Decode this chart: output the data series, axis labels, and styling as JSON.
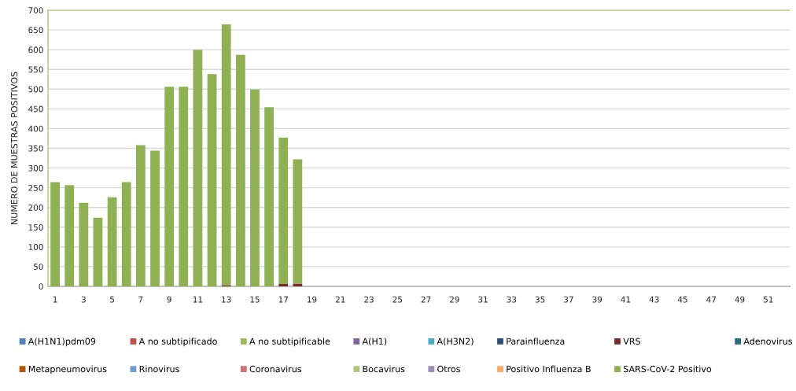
{
  "chart_data": {
    "type": "bar",
    "stacked": true,
    "ylabel": "NUMERO DE MUESTRAS POSITIVOS",
    "categories": [
      "1",
      null,
      "3",
      null,
      "5",
      null,
      "7",
      null,
      "9",
      null,
      "11",
      null,
      "13",
      null,
      "15",
      null,
      "17",
      null,
      "19",
      null,
      "21",
      null,
      "23",
      null,
      "25",
      null,
      "27",
      null,
      "29",
      null,
      "31",
      null,
      "33",
      null,
      "35",
      null,
      "37",
      null,
      "39",
      null,
      "41",
      null,
      "43",
      null,
      "45",
      null,
      "47",
      null,
      "49",
      null,
      "51",
      null
    ],
    "ylim": [
      0,
      700
    ],
    "yticks": [
      0,
      50,
      100,
      150,
      200,
      250,
      300,
      350,
      400,
      450,
      500,
      550,
      600,
      650,
      700
    ],
    "grid": "y",
    "legend": "bottom",
    "series": [
      {
        "name": "A(H1N1)pdm09",
        "color": "#4f81bd",
        "values": [
          0,
          0,
          0,
          0,
          0,
          0,
          0,
          0,
          0,
          0,
          0,
          0,
          0,
          0,
          0,
          0,
          0,
          0,
          null,
          null,
          null,
          null,
          null,
          null,
          null,
          null,
          null,
          null,
          null,
          null,
          null,
          null,
          null,
          null,
          null,
          null,
          null,
          null,
          null,
          null,
          null,
          null,
          null,
          null,
          null,
          null,
          null,
          null,
          null,
          null,
          null,
          null
        ]
      },
      {
        "name": "A no subtipificado",
        "color": "#c0504d",
        "values": [
          0,
          0,
          0,
          0,
          0,
          0,
          0,
          0,
          0,
          0,
          0,
          0,
          0,
          0,
          0,
          0,
          0,
          0,
          null,
          null,
          null,
          null,
          null,
          null,
          null,
          null,
          null,
          null,
          null,
          null,
          null,
          null,
          null,
          null,
          null,
          null,
          null,
          null,
          null,
          null,
          null,
          null,
          null,
          null,
          null,
          null,
          null,
          null,
          null,
          null,
          null,
          null
        ]
      },
      {
        "name": "A no subtipificable",
        "color": "#9bbb59",
        "values": [
          0,
          0,
          0,
          0,
          0,
          0,
          0,
          0,
          0,
          0,
          0,
          0,
          0,
          0,
          0,
          0,
          0,
          0,
          null,
          null,
          null,
          null,
          null,
          null,
          null,
          null,
          null,
          null,
          null,
          null,
          null,
          null,
          null,
          null,
          null,
          null,
          null,
          null,
          null,
          null,
          null,
          null,
          null,
          null,
          null,
          null,
          null,
          null,
          null,
          null,
          null,
          null
        ]
      },
      {
        "name": "A(H1)",
        "color": "#8064a2",
        "values": [
          0,
          0,
          0,
          0,
          0,
          0,
          0,
          0,
          0,
          0,
          0,
          0,
          0,
          0,
          0,
          0,
          0,
          0,
          null,
          null,
          null,
          null,
          null,
          null,
          null,
          null,
          null,
          null,
          null,
          null,
          null,
          null,
          null,
          null,
          null,
          null,
          null,
          null,
          null,
          null,
          null,
          null,
          null,
          null,
          null,
          null,
          null,
          null,
          null,
          null,
          null,
          null
        ]
      },
      {
        "name": "A(H3N2)",
        "color": "#4bacc6",
        "values": [
          0,
          0,
          0,
          0,
          0,
          0,
          0,
          0,
          0,
          0,
          0,
          0,
          0,
          0,
          0,
          0,
          0,
          0,
          null,
          null,
          null,
          null,
          null,
          null,
          null,
          null,
          null,
          null,
          null,
          null,
          null,
          null,
          null,
          null,
          null,
          null,
          null,
          null,
          null,
          null,
          null,
          null,
          null,
          null,
          null,
          null,
          null,
          null,
          null,
          null,
          null,
          null
        ]
      },
      {
        "name": "Parainfluenza",
        "color": "#2c4d75",
        "values": [
          0,
          0,
          0,
          0,
          0,
          0,
          0,
          0,
          0,
          0,
          0,
          0,
          0,
          0,
          0,
          0,
          0,
          0,
          null,
          null,
          null,
          null,
          null,
          null,
          null,
          null,
          null,
          null,
          null,
          null,
          null,
          null,
          null,
          null,
          null,
          null,
          null,
          null,
          null,
          null,
          null,
          null,
          null,
          null,
          null,
          null,
          null,
          null,
          null,
          null,
          null,
          null
        ]
      },
      {
        "name": "VRS",
        "color": "#772c2a",
        "values": [
          0,
          0,
          0,
          0,
          0,
          0,
          0,
          0,
          0,
          0,
          0,
          0,
          3,
          0,
          0,
          0,
          6,
          7,
          null,
          null,
          null,
          null,
          null,
          null,
          null,
          null,
          null,
          null,
          null,
          null,
          null,
          null,
          null,
          null,
          null,
          null,
          null,
          null,
          null,
          null,
          null,
          null,
          null,
          null,
          null,
          null,
          null,
          null,
          null,
          null,
          null,
          null
        ]
      },
      {
        "name": "Adenovirus",
        "color": "#276a7c",
        "values": [
          0,
          0,
          0,
          0,
          0,
          0,
          0,
          0,
          0,
          0,
          0,
          0,
          0,
          0,
          0,
          0,
          0,
          0,
          null,
          null,
          null,
          null,
          null,
          null,
          null,
          null,
          null,
          null,
          null,
          null,
          null,
          null,
          null,
          null,
          null,
          null,
          null,
          null,
          null,
          null,
          null,
          null,
          null,
          null,
          null,
          null,
          null,
          null,
          null,
          null,
          null,
          null
        ]
      },
      {
        "name": "Metapneumovirus",
        "color": "#b65708",
        "values": [
          0,
          0,
          0,
          0,
          0,
          0,
          0,
          0,
          0,
          0,
          0,
          0,
          0,
          0,
          0,
          0,
          0,
          0,
          null,
          null,
          null,
          null,
          null,
          null,
          null,
          null,
          null,
          null,
          null,
          null,
          null,
          null,
          null,
          null,
          null,
          null,
          null,
          null,
          null,
          null,
          null,
          null,
          null,
          null,
          null,
          null,
          null,
          null,
          null,
          null,
          null,
          null
        ]
      },
      {
        "name": "Rinovirus",
        "color": "#729aca",
        "values": [
          0,
          0,
          0,
          0,
          0,
          0,
          0,
          0,
          0,
          0,
          0,
          0,
          0,
          0,
          0,
          0,
          0,
          0,
          null,
          null,
          null,
          null,
          null,
          null,
          null,
          null,
          null,
          null,
          null,
          null,
          null,
          null,
          null,
          null,
          null,
          null,
          null,
          null,
          null,
          null,
          null,
          null,
          null,
          null,
          null,
          null,
          null,
          null,
          null,
          null,
          null,
          null
        ]
      },
      {
        "name": "Coronavirus",
        "color": "#cd7371",
        "values": [
          0,
          0,
          0,
          0,
          0,
          0,
          0,
          0,
          0,
          0,
          0,
          0,
          0,
          0,
          0,
          0,
          0,
          0,
          null,
          null,
          null,
          null,
          null,
          null,
          null,
          null,
          null,
          null,
          null,
          null,
          null,
          null,
          null,
          null,
          null,
          null,
          null,
          null,
          null,
          null,
          null,
          null,
          null,
          null,
          null,
          null,
          null,
          null,
          null,
          null,
          null,
          null
        ]
      },
      {
        "name": "Bocavirus",
        "color": "#afc97a",
        "values": [
          0,
          0,
          0,
          0,
          0,
          0,
          0,
          0,
          0,
          0,
          0,
          0,
          0,
          0,
          0,
          0,
          0,
          0,
          null,
          null,
          null,
          null,
          null,
          null,
          null,
          null,
          null,
          null,
          null,
          null,
          null,
          null,
          null,
          null,
          null,
          null,
          null,
          null,
          null,
          null,
          null,
          null,
          null,
          null,
          null,
          null,
          null,
          null,
          null,
          null,
          null,
          null
        ]
      },
      {
        "name": "Otros",
        "color": "#a18db7",
        "values": [
          0,
          0,
          0,
          0,
          0,
          0,
          0,
          0,
          0,
          0,
          0,
          0,
          0,
          0,
          0,
          0,
          0,
          0,
          null,
          null,
          null,
          null,
          null,
          null,
          null,
          null,
          null,
          null,
          null,
          null,
          null,
          null,
          null,
          null,
          null,
          null,
          null,
          null,
          null,
          null,
          null,
          null,
          null,
          null,
          null,
          null,
          null,
          null,
          null,
          null,
          null,
          null
        ]
      },
      {
        "name": "Positivo Influenza B",
        "color": "#f9ab6b",
        "values": [
          0,
          0,
          0,
          0,
          0,
          0,
          0,
          0,
          0,
          0,
          0,
          0,
          0,
          0,
          0,
          0,
          0,
          0,
          null,
          null,
          null,
          null,
          null,
          null,
          null,
          null,
          null,
          null,
          null,
          null,
          null,
          null,
          null,
          null,
          null,
          null,
          null,
          null,
          null,
          null,
          null,
          null,
          null,
          null,
          null,
          null,
          null,
          null,
          null,
          null,
          null,
          null
        ]
      },
      {
        "name": "SARS-CoV-2 Positivo",
        "color": "#8fb154",
        "values": [
          264,
          257,
          212,
          174,
          226,
          264,
          358,
          344,
          506,
          506,
          600,
          538,
          661,
          587,
          499,
          454,
          371,
          315,
          null,
          null,
          null,
          null,
          null,
          null,
          null,
          null,
          null,
          null,
          null,
          null,
          null,
          null,
          null,
          null,
          null,
          null,
          null,
          null,
          null,
          null,
          null,
          null,
          null,
          null,
          null,
          null,
          null,
          null,
          null,
          null,
          null,
          null
        ]
      }
    ]
  }
}
